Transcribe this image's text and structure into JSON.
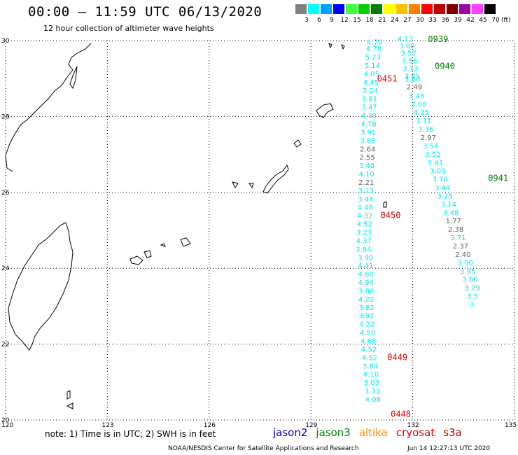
{
  "title": "00:00 – 11:59 UTC 06/13/2020",
  "subtitle": "12 hour collection of altimeter wave heights",
  "legend": {
    "unit": "(ft)",
    "bins": [
      {
        "label": "3",
        "color": "#808080"
      },
      {
        "label": "6",
        "color": "#00ffff"
      },
      {
        "label": "9",
        "color": "#00a0ff"
      },
      {
        "label": "12",
        "color": "#0000ff"
      },
      {
        "label": "15",
        "color": "#40ff40"
      },
      {
        "label": "18",
        "color": "#00d000"
      },
      {
        "label": "21",
        "color": "#008000"
      },
      {
        "label": "24",
        "color": "#ffff00"
      },
      {
        "label": "27",
        "color": "#ffc000"
      },
      {
        "label": "30",
        "color": "#ff8000"
      },
      {
        "label": "33",
        "color": "#ff0000"
      },
      {
        "label": "36",
        "color": "#c00000"
      },
      {
        "label": "39",
        "color": "#800000"
      },
      {
        "label": "42",
        "color": "#a000a0"
      },
      {
        "label": "45",
        "color": "#ff40ff"
      },
      {
        "label": "70",
        "color": "#000000"
      }
    ]
  },
  "map": {
    "lat_range": [
      20,
      30
    ],
    "lon_range": [
      120,
      135
    ],
    "lat_labels": [
      "30",
      "28",
      "26",
      "24",
      "22",
      "20"
    ],
    "lon_labels": [
      "120",
      "123",
      "126",
      "129",
      "132",
      "135"
    ],
    "grid": true
  },
  "tracks": [
    {
      "satellite": "cryosat",
      "color": "#00e5ee",
      "points": [
        {
          "lat": 29.9,
          "lon": 130.65,
          "swh": "4.70"
        },
        {
          "lat": 29.72,
          "lon": 130.62,
          "swh": "4.78"
        },
        {
          "lat": 29.5,
          "lon": 130.6,
          "swh": "5.23"
        },
        {
          "lat": 29.28,
          "lon": 130.58,
          "swh": "5.14"
        },
        {
          "lat": 29.06,
          "lon": 130.56,
          "swh": "4.05"
        },
        {
          "lat": 28.84,
          "lon": 130.54,
          "swh": "4.45"
        },
        {
          "lat": 28.62,
          "lon": 130.52,
          "swh": "3.24"
        },
        {
          "lat": 28.4,
          "lon": 130.5,
          "swh": "3.81"
        },
        {
          "lat": 28.18,
          "lon": 130.49,
          "swh": "3.47"
        },
        {
          "lat": 27.96,
          "lon": 130.48,
          "swh": "4.39"
        },
        {
          "lat": 27.74,
          "lon": 130.47,
          "swh": "4.78"
        },
        {
          "lat": 27.52,
          "lon": 130.46,
          "swh": "3.91"
        },
        {
          "lat": 27.3,
          "lon": 130.45,
          "swh": "3.85"
        },
        {
          "lat": 27.08,
          "lon": 130.44,
          "swh": "2.64",
          "color": "#606060"
        },
        {
          "lat": 26.86,
          "lon": 130.43,
          "swh": "2.55",
          "color": "#606060"
        },
        {
          "lat": 26.64,
          "lon": 130.42,
          "swh": "3.40"
        },
        {
          "lat": 26.42,
          "lon": 130.41,
          "swh": "4.10"
        },
        {
          "lat": 26.2,
          "lon": 130.4,
          "swh": "2.21",
          "color": "#606060"
        },
        {
          "lat": 25.98,
          "lon": 130.39,
          "swh": "3.13"
        },
        {
          "lat": 25.76,
          "lon": 130.38,
          "swh": "3.44"
        },
        {
          "lat": 25.54,
          "lon": 130.37,
          "swh": "4.48"
        },
        {
          "lat": 25.32,
          "lon": 130.36,
          "swh": "4.32"
        },
        {
          "lat": 25.1,
          "lon": 130.35,
          "swh": "4.52"
        },
        {
          "lat": 24.88,
          "lon": 130.34,
          "swh": "3.23"
        },
        {
          "lat": 24.66,
          "lon": 130.33,
          "swh": "4.37"
        },
        {
          "lat": 24.44,
          "lon": 130.32,
          "swh": "3.84"
        }
      ]
    },
    {
      "satellite": "cryosat",
      "color": "#00e5ee",
      "points": [
        {
          "lat": 24.22,
          "lon": 130.38,
          "swh": "3.90"
        },
        {
          "lat": 24.0,
          "lon": 130.38,
          "swh": "4.41"
        },
        {
          "lat": 23.78,
          "lon": 130.39,
          "swh": "4.60"
        },
        {
          "lat": 23.56,
          "lon": 130.39,
          "swh": "4.94"
        },
        {
          "lat": 23.34,
          "lon": 130.4,
          "swh": "3.86"
        },
        {
          "lat": 23.12,
          "lon": 130.4,
          "swh": "4.22"
        },
        {
          "lat": 22.9,
          "lon": 130.41,
          "swh": "3.82"
        },
        {
          "lat": 22.68,
          "lon": 130.41,
          "swh": "3.92"
        },
        {
          "lat": 22.46,
          "lon": 130.42,
          "swh": "4.22"
        },
        {
          "lat": 22.24,
          "lon": 130.44,
          "swh": "4.50"
        },
        {
          "lat": 22.02,
          "lon": 130.46,
          "swh": "4.68"
        },
        {
          "lat": 21.8,
          "lon": 130.48,
          "swh": "4.52"
        },
        {
          "lat": 21.58,
          "lon": 130.5,
          "swh": "4.52"
        },
        {
          "lat": 21.36,
          "lon": 130.52,
          "swh": "3.84"
        },
        {
          "lat": 21.14,
          "lon": 130.54,
          "swh": "4.10"
        },
        {
          "lat": 20.92,
          "lon": 130.56,
          "swh": "3.03"
        },
        {
          "lat": 20.7,
          "lon": 130.58,
          "swh": "3.33"
        },
        {
          "lat": 20.48,
          "lon": 130.6,
          "swh": "4.08"
        }
      ]
    },
    {
      "satellite": "cryosat",
      "color": "#00e5ee",
      "points": [
        {
          "lat": 29.98,
          "lon": 131.55,
          "swh": "4.13"
        },
        {
          "lat": 29.8,
          "lon": 131.6,
          "swh": "3.80"
        },
        {
          "lat": 29.6,
          "lon": 131.65,
          "swh": "3.57"
        },
        {
          "lat": 29.4,
          "lon": 131.68,
          "swh": "3.56"
        },
        {
          "lat": 29.2,
          "lon": 131.7,
          "swh": "3.13"
        },
        {
          "lat": 29.0,
          "lon": 131.75,
          "swh": "3.85"
        },
        {
          "lat": 28.92,
          "lon": 131.76,
          "swh": "3.60"
        },
        {
          "lat": 28.72,
          "lon": 131.82,
          "swh": "2.49",
          "color": "#606060"
        },
        {
          "lat": 28.48,
          "lon": 131.88,
          "swh": "3.43"
        },
        {
          "lat": 28.26,
          "lon": 131.95,
          "swh": "3.08"
        },
        {
          "lat": 28.04,
          "lon": 132.02,
          "swh": "4.35"
        },
        {
          "lat": 27.82,
          "lon": 132.09,
          "swh": "3.31"
        },
        {
          "lat": 27.6,
          "lon": 132.16,
          "swh": "3.36"
        },
        {
          "lat": 27.38,
          "lon": 132.23,
          "swh": "2.97",
          "color": "#606060"
        },
        {
          "lat": 27.16,
          "lon": 132.3,
          "swh": "3.54"
        },
        {
          "lat": 26.94,
          "lon": 132.37,
          "swh": "3.52"
        },
        {
          "lat": 26.72,
          "lon": 132.44,
          "swh": "3.41"
        },
        {
          "lat": 26.5,
          "lon": 132.51,
          "swh": "3.03"
        },
        {
          "lat": 26.28,
          "lon": 132.58,
          "swh": "3.70"
        },
        {
          "lat": 26.06,
          "lon": 132.65,
          "swh": "3.44"
        },
        {
          "lat": 25.84,
          "lon": 132.72,
          "swh": "3.25"
        }
      ]
    },
    {
      "satellite": "cryosat",
      "color": "#00e5ee",
      "points": [
        {
          "lat": 25.62,
          "lon": 132.83,
          "swh": "3.14"
        },
        {
          "lat": 25.4,
          "lon": 132.9,
          "swh": "3.48"
        },
        {
          "lat": 25.18,
          "lon": 132.97,
          "swh": "1.77",
          "color": "#606060"
        },
        {
          "lat": 24.96,
          "lon": 133.04,
          "swh": "2.38",
          "color": "#606060"
        },
        {
          "lat": 24.74,
          "lon": 133.11,
          "swh": "3.71"
        },
        {
          "lat": 24.52,
          "lon": 133.18,
          "swh": "2.37",
          "color": "#606060"
        },
        {
          "lat": 24.3,
          "lon": 133.25,
          "swh": "2.40",
          "color": "#606060"
        },
        {
          "lat": 24.08,
          "lon": 133.32,
          "swh": "3.50"
        },
        {
          "lat": 23.86,
          "lon": 133.39,
          "swh": "3.95"
        },
        {
          "lat": 23.64,
          "lon": 133.46,
          "swh": "3.86"
        },
        {
          "lat": 23.42,
          "lon": 133.53,
          "swh": "3.79"
        },
        {
          "lat": 23.2,
          "lon": 133.6,
          "swh": "3.5"
        },
        {
          "lat": 22.98,
          "lon": 133.67,
          "swh": "3."
        }
      ]
    }
  ],
  "time_labels": [
    {
      "text": "0939",
      "lat": 29.96,
      "lon": 132.45,
      "color": "#008000"
    },
    {
      "text": "0940",
      "lat": 29.25,
      "lon": 132.65,
      "color": "#008000"
    },
    {
      "text": "0451",
      "lat": 28.92,
      "lon": 130.95,
      "color": "#e00000"
    },
    {
      "text": "0941",
      "lat": 26.3,
      "lon": 134.22,
      "color": "#008000"
    },
    {
      "text": "0450",
      "lat": 25.32,
      "lon": 131.05,
      "color": "#e00000"
    },
    {
      "text": "0449",
      "lat": 21.58,
      "lon": 131.25,
      "color": "#e00000"
    },
    {
      "text": "0448",
      "lat": 20.08,
      "lon": 131.35,
      "color": "#e00000"
    }
  ],
  "note": "note: 1) Time is in UTC; 2) SWH is in feet",
  "satellites": [
    {
      "name": "jason2",
      "color": "#0000cc"
    },
    {
      "name": "jason3",
      "color": "#008000"
    },
    {
      "name": "altika",
      "color": "#ff8c00"
    },
    {
      "name": "cryosat",
      "color": "#e00000"
    },
    {
      "name": "s3a",
      "color": "#b00000"
    }
  ],
  "credit": "NOAA/NESDIS Center for Satellite Applications and Research",
  "timestamp": "Jun 14 12:27:13 UTC 2020"
}
